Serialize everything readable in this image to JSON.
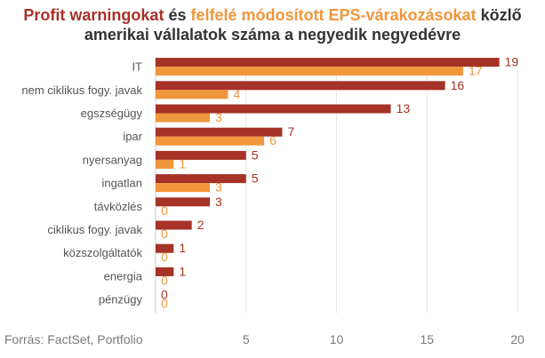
{
  "title": {
    "part1": "Profit warningokat",
    "part2": " és ",
    "part3": "felfelé módosított EPS-várakozásokat",
    "part4": " közlő",
    "line2": "amerikai vállalatok száma a negyedik negyedévre"
  },
  "source": "Forrás: FactSet, Portfolio",
  "colors": {
    "warnings": "#a63228",
    "eps": "#f0963c",
    "axis": "#cccccc",
    "grid": "#e6e6e6"
  },
  "chart_data": {
    "type": "bar",
    "orientation": "horizontal",
    "categories": [
      "IT",
      "nem ciklikus fogy. javak",
      "egszségügy",
      "ipar",
      "nyersanyag",
      "ingatlan",
      "távközlés",
      "ciklikus fogy. javak",
      "közszolgáltatók",
      "energia",
      "pénzügy"
    ],
    "series": [
      {
        "name": "Profit warningokat",
        "values": [
          19,
          16,
          13,
          7,
          5,
          5,
          3,
          2,
          1,
          1,
          0
        ]
      },
      {
        "name": "felfelé módosított EPS-várakozásokat",
        "values": [
          17,
          4,
          3,
          6,
          1,
          3,
          0,
          0,
          0,
          0,
          0
        ]
      }
    ],
    "xticks": [
      5,
      10,
      15,
      20
    ],
    "xlim": [
      0,
      20
    ],
    "grid": true
  }
}
